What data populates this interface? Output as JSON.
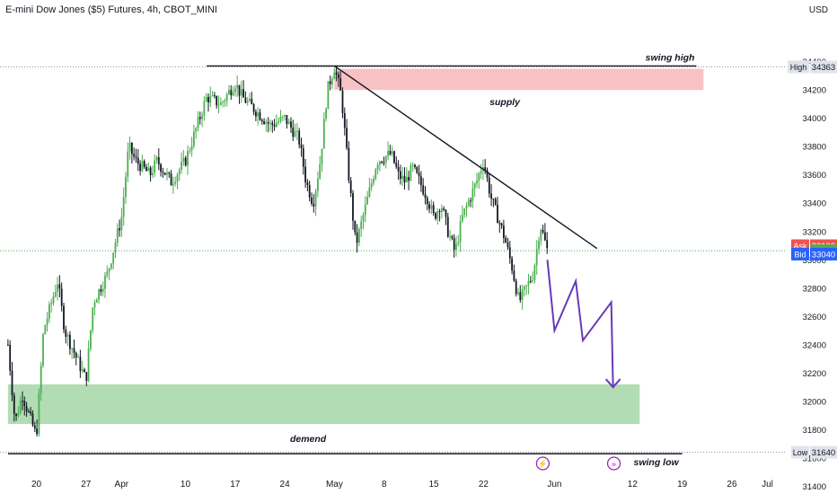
{
  "header": {
    "symbol_title": "E-mini Dow Jones ($5) Futures, 4h, CBOT_MINI",
    "currency": "USD"
  },
  "colors": {
    "up": "#26a69a",
    "down": "#131722",
    "candle_up_fill": "#4caf50",
    "supply_zone": "#f7b7bb",
    "demand_zone": "#a5d6a7",
    "projection": "#673ab7",
    "ask": "#ef5350",
    "last": "#4caf50",
    "bid": "#2962ff",
    "high_low_tag": "#e0e3eb"
  },
  "chart_data": {
    "type": "candlestick",
    "timeframe": "4h",
    "y_range": [
      31380,
      34560
    ],
    "y_ticks": [
      31400,
      31600,
      31800,
      32000,
      32200,
      32400,
      32600,
      32800,
      33000,
      33200,
      33400,
      33600,
      33800,
      34000,
      34200,
      34400
    ],
    "x_ticks": [
      "20",
      "27",
      "Apr",
      "10",
      "17",
      "24",
      "May",
      "8",
      "15",
      "22",
      "Jun",
      "12",
      "19",
      "26",
      "Jul"
    ],
    "price_path": [
      [
        "Mar 16",
        32400
      ],
      [
        "Mar 17",
        31850
      ],
      [
        "Mar 18",
        32050
      ],
      [
        "Mar 20",
        31750
      ],
      [
        "Mar 21",
        32500
      ],
      [
        "Mar 23",
        32850
      ],
      [
        "Mar 24",
        32500
      ],
      [
        "Mar 27",
        32150
      ],
      [
        "Mar 28",
        32700
      ],
      [
        "Mar 30",
        32900
      ],
      [
        "Apr 1",
        33300
      ],
      [
        "Apr 2",
        33800
      ],
      [
        "Apr 3",
        33700
      ],
      [
        "Apr 5",
        33600
      ],
      [
        "Apr 6",
        33700
      ],
      [
        "Apr 8",
        33550
      ],
      [
        "Apr 10",
        33700
      ],
      [
        "Apr 12",
        34000
      ],
      [
        "Apr 13",
        34150
      ],
      [
        "Apr 15",
        34100
      ],
      [
        "Apr 17",
        34250
      ],
      [
        "Apr 18",
        34150
      ],
      [
        "Apr 20",
        34050
      ],
      [
        "Apr 22",
        33950
      ],
      [
        "Apr 24",
        34000
      ],
      [
        "Apr 26",
        33850
      ],
      [
        "Apr 27",
        33550
      ],
      [
        "Apr 28",
        33400
      ],
      [
        "Apr 29",
        33700
      ],
      [
        "Apr 30",
        34200
      ],
      [
        "May 1",
        34363
      ],
      [
        "May 2",
        34150
      ],
      [
        "May 3",
        33600
      ],
      [
        "May 4",
        33100
      ],
      [
        "May 5",
        33300
      ],
      [
        "May 7",
        33700
      ],
      [
        "May 9",
        33750
      ],
      [
        "May 10",
        33600
      ],
      [
        "May 11",
        33550
      ],
      [
        "May 12",
        33650
      ],
      [
        "May 14",
        33450
      ],
      [
        "May 15",
        33300
      ],
      [
        "May 16",
        33400
      ],
      [
        "May 17",
        33200
      ],
      [
        "May 18",
        33050
      ],
      [
        "May 19",
        33300
      ],
      [
        "May 21",
        33550
      ],
      [
        "May 22",
        33700
      ],
      [
        "May 23",
        33450
      ],
      [
        "May 24",
        33300
      ],
      [
        "May 25",
        33150
      ],
      [
        "May 26",
        32950
      ],
      [
        "May 27",
        32700
      ],
      [
        "May 29",
        32900
      ],
      [
        "May 30",
        33250
      ],
      [
        "May 31",
        33064
      ]
    ],
    "levels": {
      "high": 34363,
      "low": 31640,
      "ask": 33100,
      "last": 33064,
      "bid": 33040
    },
    "zones": [
      {
        "label": "supply",
        "from": "May 1",
        "to": "Jun 22",
        "y_low": 34200,
        "y_high": 34350
      },
      {
        "label": "demend",
        "from": "Mar 16",
        "to": "Jun 13",
        "y_low": 31840,
        "y_high": 32120
      }
    ],
    "lines": [
      {
        "label": "swing high",
        "from": [
          "Apr 13",
          34370
        ],
        "to": [
          "Jun 21",
          34370
        ]
      },
      {
        "label": "swing low",
        "from": [
          "Mar 16",
          31630
        ],
        "to": [
          "Jun 19",
          31630
        ]
      },
      {
        "label": "",
        "from": [
          "May 1",
          34370
        ],
        "to": [
          "Jun 7",
          33080
        ]
      }
    ],
    "projection_path": [
      [
        "May 31",
        33000
      ],
      [
        "Jun 1",
        32500
      ],
      [
        "Jun 4",
        32850
      ],
      [
        "Jun 5",
        32430
      ],
      [
        "Jun 9",
        32700
      ],
      [
        "Jun 9",
        32100
      ]
    ],
    "labels": {
      "supply": "supply",
      "demand": "demend",
      "swing_high": "swing high",
      "swing_low": "swing low",
      "high": "High",
      "low": "Low",
      "ask": "Ask",
      "bid": "Bid"
    },
    "grid": false,
    "legend": "none"
  }
}
